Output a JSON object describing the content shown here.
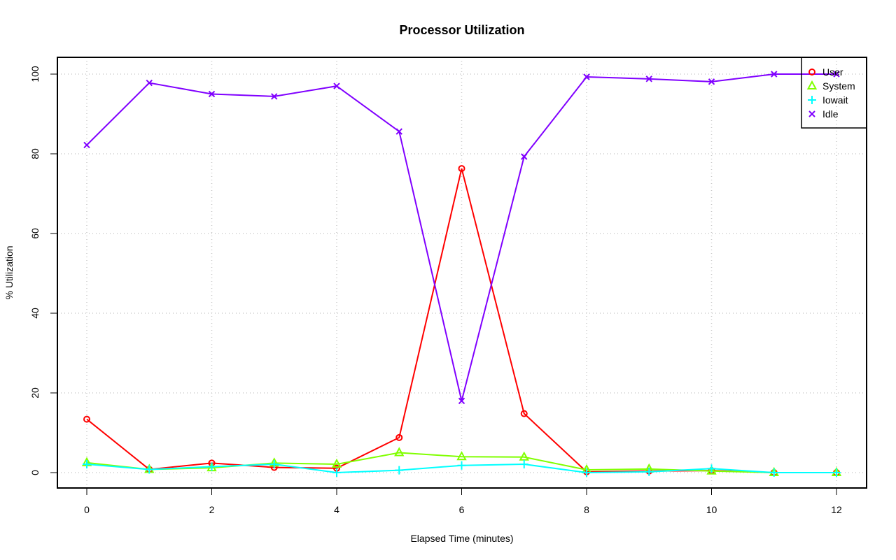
{
  "chart_data": {
    "type": "line",
    "title": "Processor Utilization",
    "xlabel": "Elapsed Time (minutes)",
    "ylabel": "% Utilization",
    "xlim": [
      0,
      12
    ],
    "ylim": [
      0,
      100
    ],
    "xticks": [
      0,
      2,
      4,
      6,
      8,
      10,
      12
    ],
    "yticks": [
      0,
      20,
      40,
      60,
      80,
      100
    ],
    "grid": true,
    "legend_position": "top-right",
    "x": [
      0,
      1,
      2,
      3,
      4,
      5,
      6,
      7,
      8,
      9,
      10,
      11,
      12
    ],
    "series": [
      {
        "name": "User",
        "color": "#ff0000",
        "marker": "circle",
        "values": [
          13.4,
          0.8,
          2.4,
          1.3,
          1.1,
          8.8,
          76.3,
          14.8,
          0.2,
          0.4,
          0.5,
          0,
          0
        ]
      },
      {
        "name": "System",
        "color": "#80ff00",
        "marker": "triangle",
        "values": [
          2.5,
          0.8,
          1.2,
          2.4,
          2.1,
          5.0,
          4.0,
          3.9,
          0.7,
          0.9,
          0.4,
          0,
          0
        ]
      },
      {
        "name": "Iowait",
        "color": "#00ffff",
        "marker": "plus",
        "values": [
          2.1,
          0.8,
          1.5,
          2.1,
          0,
          0.6,
          1.8,
          2.1,
          0,
          0.2,
          1.0,
          0,
          0
        ]
      },
      {
        "name": "Idle",
        "color": "#8000ff",
        "marker": "cross",
        "values": [
          82.2,
          97.8,
          95.0,
          94.4,
          97.0,
          85.6,
          18.0,
          79.3,
          99.3,
          98.8,
          98.1,
          100,
          100
        ]
      }
    ]
  }
}
